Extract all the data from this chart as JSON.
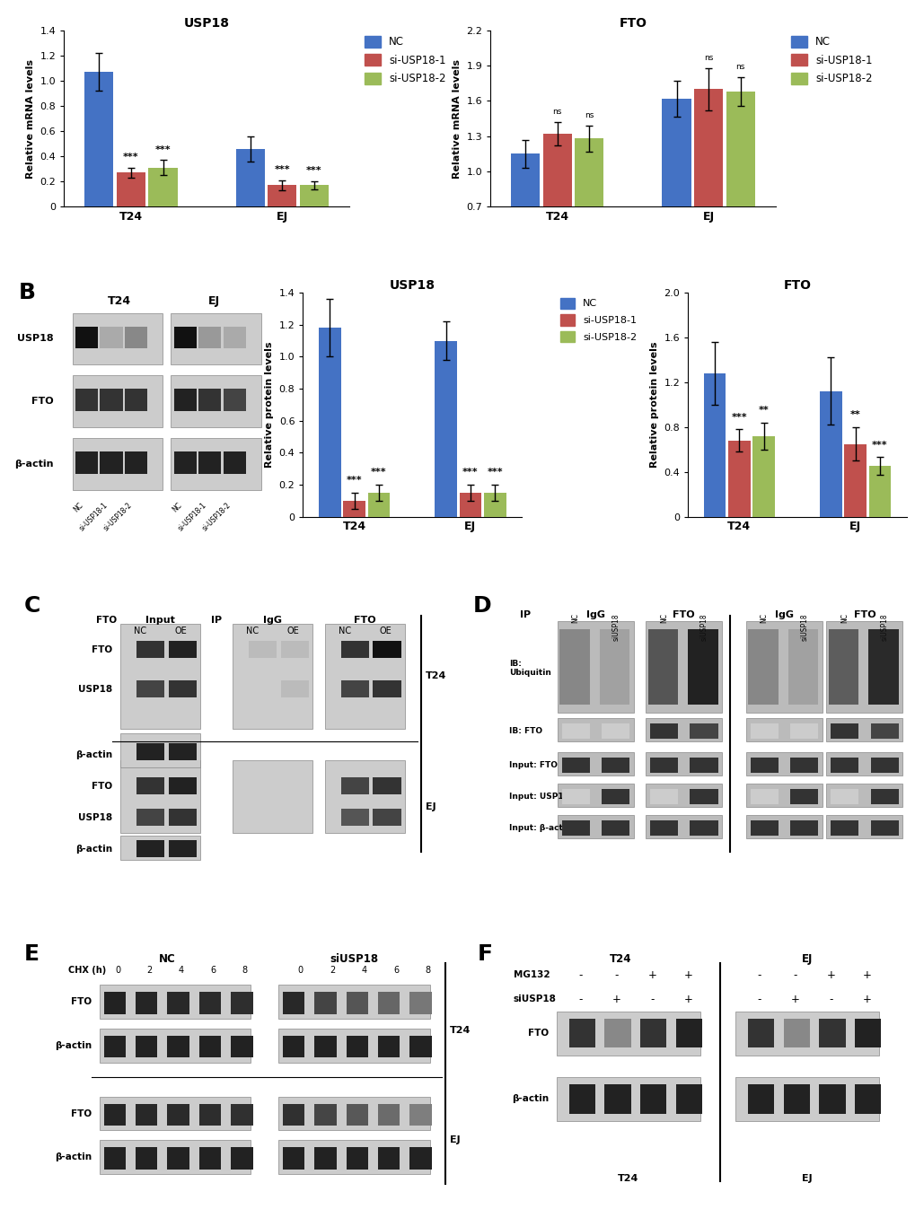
{
  "panel_A_left": {
    "title": "USP18",
    "ylabel": "Relative mRNA levels",
    "groups": [
      "T24",
      "EJ"
    ],
    "values": {
      "T24": [
        1.07,
        0.27,
        0.31
      ],
      "EJ": [
        0.46,
        0.17,
        0.17
      ]
    },
    "errors": {
      "T24": [
        0.15,
        0.04,
        0.06
      ],
      "EJ": [
        0.1,
        0.04,
        0.03
      ]
    },
    "sig": {
      "T24": [
        "",
        "***",
        "***"
      ],
      "EJ": [
        "",
        "***",
        "***"
      ]
    },
    "ylim": [
      0,
      1.4
    ],
    "yticks": [
      0,
      0.2,
      0.4,
      0.6,
      0.8,
      1.0,
      1.2,
      1.4
    ]
  },
  "panel_A_right": {
    "title": "FTO",
    "ylabel": "Relative mRNA levels",
    "groups": [
      "T24",
      "EJ"
    ],
    "values": {
      "T24": [
        1.15,
        1.32,
        1.28
      ],
      "EJ": [
        1.62,
        1.7,
        1.68
      ]
    },
    "errors": {
      "T24": [
        0.12,
        0.1,
        0.11
      ],
      "EJ": [
        0.15,
        0.18,
        0.12
      ]
    },
    "sig": {
      "T24": [
        "",
        "ns",
        "ns"
      ],
      "EJ": [
        "",
        "ns",
        "ns"
      ]
    },
    "ylim": [
      0.7,
      2.2
    ],
    "yticks": [
      0.7,
      1.0,
      1.3,
      1.6,
      1.9,
      2.2
    ]
  },
  "panel_B_bar1": {
    "title": "USP18",
    "ylabel": "Relative protein levels",
    "groups": [
      "T24",
      "EJ"
    ],
    "values": {
      "T24": [
        1.18,
        0.1,
        0.15
      ],
      "EJ": [
        1.1,
        0.15,
        0.15
      ]
    },
    "errors": {
      "T24": [
        0.18,
        0.05,
        0.05
      ],
      "EJ": [
        0.12,
        0.05,
        0.05
      ]
    },
    "sig": {
      "T24": [
        "",
        "***",
        "***"
      ],
      "EJ": [
        "",
        "***",
        "***"
      ]
    },
    "ylim": [
      0,
      1.4
    ],
    "yticks": [
      0,
      0.2,
      0.4,
      0.6,
      0.8,
      1.0,
      1.2,
      1.4
    ]
  },
  "panel_B_bar2": {
    "title": "FTO",
    "ylabel": "Relative protein levels",
    "groups": [
      "T24",
      "EJ"
    ],
    "values": {
      "T24": [
        1.28,
        0.68,
        0.72
      ],
      "EJ": [
        1.12,
        0.65,
        0.45
      ]
    },
    "errors": {
      "T24": [
        0.28,
        0.1,
        0.12
      ],
      "EJ": [
        0.3,
        0.15,
        0.08
      ]
    },
    "sig": {
      "T24": [
        "",
        "***",
        "**"
      ],
      "EJ": [
        "",
        "**",
        "***"
      ]
    },
    "ylim": [
      0,
      2.0
    ],
    "yticks": [
      0,
      0.4,
      0.8,
      1.2,
      1.6,
      2.0
    ]
  },
  "bar_colors": [
    "#4472C4",
    "#C0504D",
    "#9BBB59"
  ],
  "legend_labels": [
    "NC",
    "si-USP18-1",
    "si-USP18-2"
  ],
  "bg": "#FFFFFF",
  "blot_bg": "#D8D8D8",
  "band_dark": "#1A1A1A",
  "band_med": "#555555",
  "band_light": "#999999"
}
